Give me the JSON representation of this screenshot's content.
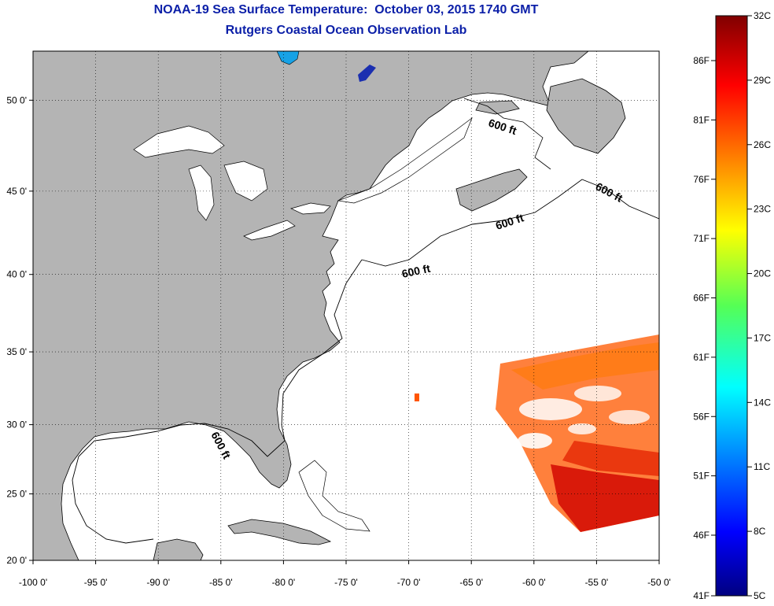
{
  "title": "NOAA-19 Sea Surface Temperature:  October 03, 2015 1740 GMT",
  "subtitle": "Rutgers Coastal Ocean Observation Lab",
  "map": {
    "lon_range": [
      -100,
      -50
    ],
    "lat_range": [
      20,
      52.5
    ],
    "lon_ticks": [
      {
        "value": -100,
        "label": "-100 0'"
      },
      {
        "value": -95,
        "label": "-95 0'"
      },
      {
        "value": -90,
        "label": "-90 0'"
      },
      {
        "value": -85,
        "label": "-85 0'"
      },
      {
        "value": -80,
        "label": "-80 0'"
      },
      {
        "value": -75,
        "label": "-75 0'"
      },
      {
        "value": -70,
        "label": "-70 0'"
      },
      {
        "value": -65,
        "label": "-65 0'"
      },
      {
        "value": -60,
        "label": "-60 0'"
      },
      {
        "value": -55,
        "label": "-55 0'"
      },
      {
        "value": -50,
        "label": "-50 0'"
      }
    ],
    "lat_ticks": [
      {
        "value": 20,
        "label": "20 0'"
      },
      {
        "value": 25,
        "label": "25 0'"
      },
      {
        "value": 30,
        "label": "30 0'"
      },
      {
        "value": 35,
        "label": "35 0'"
      },
      {
        "value": 40,
        "label": "40 0'"
      },
      {
        "value": 45,
        "label": "45 0'"
      },
      {
        "value": 50,
        "label": "50 0'"
      }
    ],
    "contour_labels": [
      "600 ft",
      "600 ft",
      "600 ft",
      "600 ft",
      "600 ft"
    ],
    "land_color": "#b4b4b4",
    "grid": "dotted"
  },
  "colorbar": {
    "celsius_labels": [
      "32C",
      "29C",
      "26C",
      "23C",
      "20C",
      "17C",
      "14C",
      "11C",
      "8C",
      "5C"
    ],
    "fahrenheit_labels": [
      "86F",
      "81F",
      "76F",
      "71F",
      "66F",
      "61F",
      "56F",
      "51F",
      "46F",
      "41F"
    ]
  }
}
